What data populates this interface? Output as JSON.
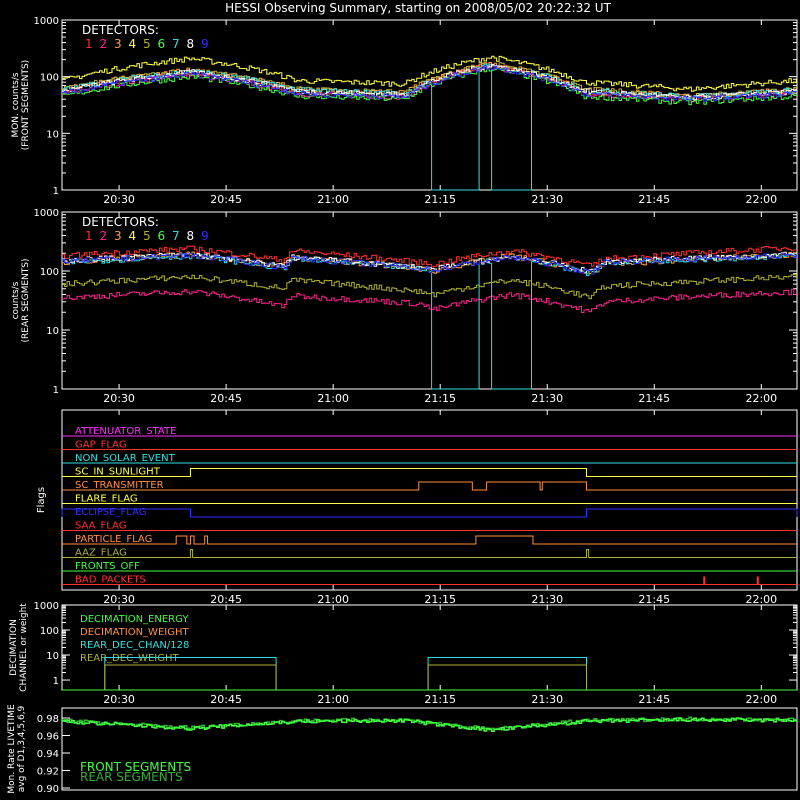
{
  "title": "HESSI Observing Summary, starting on 2008/05/02 20:22:32 UT",
  "time_ticks": [
    "20:30",
    "20:45",
    "21:00",
    "21:15",
    "21:30",
    "21:45",
    "22:00"
  ],
  "time_tick_minutes": [
    30,
    45,
    60,
    75,
    90,
    105,
    120
  ],
  "detector_colors": [
    "#ff3030",
    "#ff2090",
    "#ffa040",
    "#ffff40",
    "#b0b030",
    "#40ff40",
    "#30e0e0",
    "#ffffff",
    "#3030ff"
  ],
  "chart_data": [
    {
      "type": "line",
      "panel": "front",
      "ylabel": [
        "MON. counts/s",
        "(FRONT SEGMENTS)"
      ],
      "yscale": "log",
      "ylim": [
        1,
        1000
      ],
      "ytick_labels": [
        "1",
        "10",
        "100",
        "1000"
      ],
      "legend_title": "DETECTORS:",
      "legend_labels": [
        "1",
        "2",
        "3",
        "4",
        "5",
        "6",
        "7",
        "8",
        "9"
      ],
      "x_minutes": [
        22,
        40,
        55,
        70,
        82,
        95,
        110,
        125
      ],
      "series": [
        {
          "name": "1",
          "values": [
            55,
            120,
            55,
            48,
            160,
            55,
            42,
            55
          ]
        },
        {
          "name": "2",
          "values": [
            50,
            110,
            50,
            44,
            150,
            50,
            40,
            50
          ]
        },
        {
          "name": "3",
          "values": [
            60,
            130,
            60,
            52,
            170,
            60,
            45,
            60
          ]
        },
        {
          "name": "4",
          "values": [
            85,
            210,
            85,
            75,
            220,
            80,
            60,
            85
          ]
        },
        {
          "name": "5",
          "values": [
            60,
            130,
            60,
            52,
            170,
            60,
            45,
            60
          ]
        },
        {
          "name": "6",
          "values": [
            45,
            100,
            45,
            40,
            140,
            45,
            35,
            45
          ]
        },
        {
          "name": "7",
          "values": [
            58,
            125,
            58,
            50,
            165,
            58,
            44,
            58
          ]
        },
        {
          "name": "8",
          "values": [
            55,
            120,
            55,
            48,
            160,
            55,
            42,
            55
          ]
        },
        {
          "name": "9",
          "values": [
            50,
            110,
            50,
            44,
            150,
            50,
            40,
            50
          ]
        }
      ],
      "det7_dropouts_minutes": [
        [
          73.5,
          80.3
        ],
        [
          81.9,
          87.7
        ]
      ]
    },
    {
      "type": "line",
      "panel": "rear",
      "ylabel": [
        "counts/s",
        "(REAR SEGMENTS)"
      ],
      "yscale": "log",
      "ylim": [
        1,
        1000
      ],
      "ytick_labels": [
        "1",
        "10",
        "100",
        "1000"
      ],
      "legend_title": "DETECTORS:",
      "legend_labels": [
        "1",
        "2",
        "3",
        "4",
        "5",
        "6",
        "7",
        "8",
        "9"
      ],
      "x_minutes": [
        22,
        40,
        53,
        54,
        72,
        74,
        85,
        96,
        98,
        125
      ],
      "series": [
        {
          "name": "1",
          "values": [
            180,
            240,
            150,
            220,
            140,
            130,
            220,
            120,
            160,
            250
          ]
        },
        {
          "name": "2",
          "values": [
            35,
            45,
            25,
            38,
            28,
            22,
            40,
            20,
            30,
            45
          ]
        },
        {
          "name": "3",
          "values": [
            140,
            190,
            120,
            170,
            110,
            100,
            180,
            90,
            130,
            190
          ]
        },
        {
          "name": "5",
          "values": [
            60,
            80,
            50,
            70,
            45,
            40,
            70,
            35,
            55,
            80
          ]
        },
        {
          "name": "7",
          "values": [
            140,
            180,
            110,
            160,
            110,
            100,
            170,
            90,
            140,
            180
          ]
        },
        {
          "name": "8",
          "values": [
            150,
            190,
            120,
            170,
            115,
            105,
            175,
            95,
            145,
            190
          ]
        },
        {
          "name": "9",
          "values": [
            145,
            185,
            115,
            165,
            112,
            102,
            172,
            92,
            142,
            185
          ]
        }
      ],
      "det7_dropouts_minutes": [
        [
          73.5,
          80.3
        ],
        [
          81.9,
          87.7
        ]
      ]
    },
    {
      "type": "line",
      "panel": "flags",
      "ylabel": "Flags",
      "flags": [
        {
          "name": "ATTENUATOR_STATE",
          "color": "#ff30ff",
          "segments": []
        },
        {
          "name": "GAP_FLAG",
          "color": "#ff3030",
          "segments": []
        },
        {
          "name": "NON_SOLAR_EVENT",
          "color": "#30e0e0",
          "segments": []
        },
        {
          "name": "SC_IN_SUNLIGHT",
          "color": "#ffff40",
          "segments": [
            [
              40,
              95.5
            ]
          ]
        },
        {
          "name": "SC_TRANSMITTER",
          "color": "#ff9040",
          "segments": [
            [
              72,
              79.5
            ],
            [
              81.5,
              89
            ],
            [
              89.3,
              95.5
            ]
          ]
        },
        {
          "name": "FLARE_FLAG",
          "color": "#ffff40",
          "segments": []
        },
        {
          "name": "ECLIPSE_FLAG",
          "color": "#3030ff",
          "segments": [
            [
              22,
              40
            ],
            [
              95.5,
              125
            ]
          ]
        },
        {
          "name": "SAA_FLAG",
          "color": "#ff3030",
          "segments": []
        },
        {
          "name": "PARTICLE_FLAG",
          "color": "#ff9040",
          "segments": [
            [
              38,
              39.5
            ],
            [
              40,
              40.5
            ],
            [
              42,
              42.4
            ],
            [
              80,
              88
            ]
          ]
        },
        {
          "name": "AAZ_FLAG",
          "color": "#b0b030",
          "segments": [
            [
              40,
              40.3
            ],
            [
              95.5,
              95.8
            ]
          ]
        },
        {
          "name": "FRONTS_OFF",
          "color": "#40ff40",
          "segments": []
        },
        {
          "name": "BAD_PACKETS",
          "color": "#ff3030",
          "spikes": [
            112,
            119.5
          ]
        }
      ]
    },
    {
      "type": "line",
      "panel": "decimation",
      "ylabel": [
        "DECIMATION",
        "CHANNEL or weight"
      ],
      "yscale": "log",
      "ylim": [
        0.4,
        1000
      ],
      "ytick_labels": [
        "1",
        "10",
        "100",
        "1000"
      ],
      "legend_labels": [
        "DECIMATION_ENERGY",
        "DECIMATION_WEIGHT",
        "REAR_DEC_CHAN/128",
        "REAR_DEC_WEIGHT"
      ],
      "legend_colors": [
        "#40ff40",
        "#ff9040",
        "#30e0e0",
        "#b0b030"
      ],
      "series": [
        {
          "name": "REAR_DEC_CHAN/128",
          "steps": [
            [
              22,
              0.4
            ],
            [
              28,
              8
            ],
            [
              52,
              0.4
            ],
            [
              73.3,
              8
            ],
            [
              95.5,
              0.4
            ],
            [
              125,
              0.4
            ]
          ]
        },
        {
          "name": "REAR_DEC_WEIGHT",
          "steps": [
            [
              22,
              0.4
            ],
            [
              28,
              4
            ],
            [
              52,
              0.4
            ],
            [
              73.3,
              4
            ],
            [
              95.5,
              0.4
            ],
            [
              125,
              0.4
            ]
          ]
        },
        {
          "name": "DECIMATION_ENERGY",
          "steps": [
            [
              22,
              0.4
            ],
            [
              125,
              0.4
            ]
          ]
        }
      ]
    },
    {
      "type": "line",
      "panel": "livetime",
      "ylabel": [
        "Mon. Rate LIVETIME",
        "avg of D1,3,4,5,6,9"
      ],
      "ylim": [
        0.9,
        0.98
      ],
      "ytick_labels": [
        "0.90",
        "0.92",
        "0.94",
        "0.96",
        "0.98"
      ],
      "legend_labels": [
        "FRONT SEGMENTS",
        "REAR SEGMENTS"
      ],
      "legend_colors": [
        "#40ff40",
        "#30b030"
      ],
      "x_minutes": [
        22,
        40,
        55,
        70,
        82,
        95,
        110,
        125
      ],
      "values": [
        0.977,
        0.969,
        0.977,
        0.978,
        0.967,
        0.977,
        0.979,
        0.978
      ]
    }
  ]
}
